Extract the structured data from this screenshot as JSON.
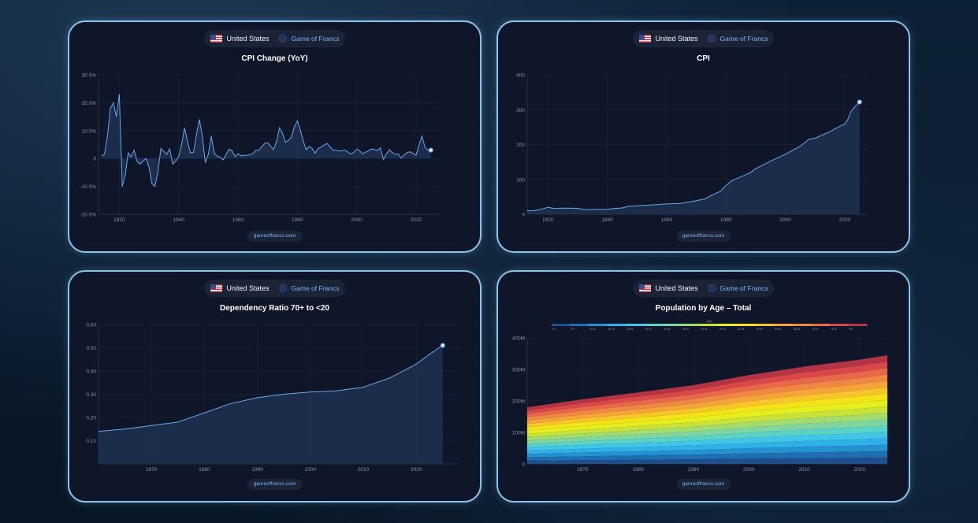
{
  "cards": [
    {
      "country": "United States",
      "brand": "Game of Francs",
      "title": "CPI Change (YoY)",
      "footer": "gameoffrancs.com"
    },
    {
      "country": "United States",
      "brand": "Game of Francs",
      "title": "CPI",
      "footer": "gameoffrancs.com"
    },
    {
      "country": "United States",
      "brand": "Game of Francs",
      "title": "Dependency Ratio 70+ to <20",
      "footer": "gameoffrancs.com"
    },
    {
      "country": "United States",
      "brand": "Game of Francs",
      "title": "Population by Age – Total",
      "footer": "gameoffrancs.com"
    }
  ],
  "colors": {
    "line": "#6aa6e8",
    "fill": "#1e3152",
    "grid": "#1f2940",
    "axis": "#8a93a6",
    "card_border": "#8cc4ee"
  },
  "chart_data": [
    {
      "type": "area",
      "title": "CPI Change (YoY)",
      "xlabel": "",
      "ylabel": "",
      "ylim": [
        -20,
        30
      ],
      "yticks": [
        "30.0%",
        "20.0%",
        "10.0%",
        "0",
        "-10.0%",
        "-20.0%"
      ],
      "xticks": [
        "1920",
        "1940",
        "1960",
        "1980",
        "2000",
        "2020"
      ],
      "x": [
        1914,
        1915,
        1916,
        1917,
        1918,
        1919,
        1920,
        1921,
        1922,
        1923,
        1924,
        1925,
        1926,
        1927,
        1928,
        1929,
        1930,
        1931,
        1932,
        1933,
        1934,
        1935,
        1936,
        1937,
        1938,
        1939,
        1940,
        1941,
        1942,
        1943,
        1944,
        1945,
        1946,
        1947,
        1948,
        1949,
        1950,
        1951,
        1952,
        1953,
        1954,
        1955,
        1956,
        1957,
        1958,
        1959,
        1960,
        1961,
        1962,
        1963,
        1964,
        1965,
        1966,
        1967,
        1968,
        1969,
        1970,
        1971,
        1972,
        1973,
        1974,
        1975,
        1976,
        1977,
        1978,
        1979,
        1980,
        1981,
        1982,
        1983,
        1984,
        1985,
        1986,
        1987,
        1988,
        1989,
        1990,
        1991,
        1992,
        1993,
        1994,
        1995,
        1996,
        1997,
        1998,
        1999,
        2000,
        2001,
        2002,
        2003,
        2004,
        2005,
        2006,
        2007,
        2008,
        2009,
        2010,
        2011,
        2012,
        2013,
        2014,
        2015,
        2016,
        2017,
        2018,
        2019,
        2020,
        2021,
        2022,
        2023,
        2024,
        2025
      ],
      "values": [
        1.0,
        1.5,
        8.0,
        18.0,
        20.0,
        15.0,
        23.0,
        -10.0,
        -6.0,
        2.0,
        0.5,
        3.0,
        -1.0,
        -2.0,
        -1.0,
        0.0,
        -3.0,
        -9.0,
        -10.0,
        -5.0,
        3.5,
        2.5,
        1.5,
        3.5,
        -2.0,
        -1.0,
        0.7,
        5.0,
        11.0,
        6.0,
        2.0,
        2.2,
        8.5,
        14.0,
        8.0,
        -1.5,
        1.5,
        8.0,
        2.0,
        0.8,
        0.5,
        -0.5,
        1.5,
        3.3,
        2.8,
        0.7,
        1.7,
        1.0,
        1.1,
        1.2,
        1.3,
        1.7,
        2.9,
        2.9,
        4.2,
        5.4,
        5.7,
        4.4,
        3.2,
        6.2,
        11.0,
        9.1,
        5.8,
        6.5,
        7.6,
        11.3,
        13.5,
        10.3,
        6.2,
        3.2,
        4.3,
        3.6,
        1.9,
        3.6,
        4.1,
        4.8,
        5.4,
        4.2,
        3.0,
        3.0,
        2.6,
        2.8,
        3.0,
        2.3,
        1.6,
        2.2,
        3.4,
        2.8,
        1.6,
        2.3,
        2.7,
        3.4,
        3.2,
        2.8,
        3.8,
        -0.4,
        1.6,
        3.2,
        2.1,
        1.5,
        1.6,
        0.1,
        1.3,
        2.1,
        2.4,
        1.8,
        1.2,
        4.7,
        8.0,
        4.1,
        2.9,
        3.0
      ]
    },
    {
      "type": "area",
      "title": "CPI",
      "xlabel": "",
      "ylabel": "",
      "ylim": [
        0,
        400
      ],
      "yticks": [
        "400",
        "300",
        "200",
        "100",
        "0"
      ],
      "xticks": [
        "1920",
        "1940",
        "1960",
        "1980",
        "2000",
        "2020"
      ],
      "x": [
        1913,
        1915,
        1917,
        1918,
        1920,
        1922,
        1925,
        1929,
        1930,
        1933,
        1935,
        1940,
        1942,
        1945,
        1947,
        1950,
        1955,
        1960,
        1965,
        1970,
        1973,
        1975,
        1978,
        1980,
        1982,
        1985,
        1988,
        1990,
        1995,
        2000,
        2005,
        2008,
        2010,
        2015,
        2018,
        2020,
        2021,
        2022,
        2023,
        2024,
        2025
      ],
      "values": [
        9.9,
        10.1,
        12.8,
        15.1,
        20.0,
        16.8,
        17.5,
        17.1,
        16.7,
        13.0,
        13.7,
        14.0,
        16.3,
        18.0,
        22.3,
        24.1,
        26.8,
        29.6,
        31.5,
        38.8,
        44.4,
        53.8,
        65.2,
        82.4,
        96.5,
        107.6,
        118.3,
        130.7,
        152.4,
        172.2,
        195.3,
        215.3,
        218.1,
        237.0,
        251.1,
        258.8,
        271.0,
        292.7,
        304.7,
        313.7,
        322.0
      ]
    },
    {
      "type": "area",
      "title": "Dependency Ratio 70+ to <20",
      "xlabel": "",
      "ylabel": "",
      "ylim": [
        0,
        0.6
      ],
      "yticks": [
        "0.60",
        "0.50",
        "0.40",
        "0.30",
        "0.20",
        "0.10"
      ],
      "xticks": [
        "1970",
        "1980",
        "1990",
        "2000",
        "2010",
        "2020"
      ],
      "x": [
        1960,
        1965,
        1970,
        1975,
        1980,
        1985,
        1990,
        1995,
        2000,
        2005,
        2010,
        2015,
        2020,
        2023,
        2025
      ],
      "values": [
        0.14,
        0.15,
        0.165,
        0.18,
        0.22,
        0.26,
        0.285,
        0.3,
        0.31,
        0.315,
        0.33,
        0.37,
        0.43,
        0.48,
        0.51
      ]
    },
    {
      "type": "area",
      "title": "Population by Age – Total",
      "xlabel": "",
      "ylabel": "",
      "ylim": [
        0,
        400
      ],
      "yticks": [
        "400M",
        "300M",
        "200M",
        "100M",
        "0"
      ],
      "xticks": [
        "1970",
        "1980",
        "1990",
        "2000",
        "2010",
        "2020"
      ],
      "legend_title": "Age",
      "legend_placement": "top",
      "x": [
        1960,
        1970,
        1980,
        1990,
        2000,
        2010,
        2020,
        2025
      ],
      "total": [
        180,
        205,
        227,
        250,
        282,
        309,
        331,
        345
      ],
      "series": [
        {
          "name": "0-4",
          "color": "#1d4f8f"
        },
        {
          "name": "5-9",
          "color": "#1f6fb0"
        },
        {
          "name": "10-14",
          "color": "#2491d0"
        },
        {
          "name": "15-19",
          "color": "#2fb0e6"
        },
        {
          "name": "20-24",
          "color": "#41c6e8"
        },
        {
          "name": "25-29",
          "color": "#5bd2c6"
        },
        {
          "name": "30-34",
          "color": "#7fd6a0"
        },
        {
          "name": "35-39",
          "color": "#a3dc6e"
        },
        {
          "name": "40-44",
          "color": "#c8e23a"
        },
        {
          "name": "45-49",
          "color": "#e6ee1e"
        },
        {
          "name": "50-54",
          "color": "#f5e31a"
        },
        {
          "name": "55-59",
          "color": "#f8c52b"
        },
        {
          "name": "60-64",
          "color": "#f6a43a"
        },
        {
          "name": "65-69",
          "color": "#f08843"
        },
        {
          "name": "70-74",
          "color": "#e8694a"
        },
        {
          "name": "75-79",
          "color": "#d9474a"
        },
        {
          "name": "80+",
          "color": "#b53444"
        }
      ]
    }
  ]
}
